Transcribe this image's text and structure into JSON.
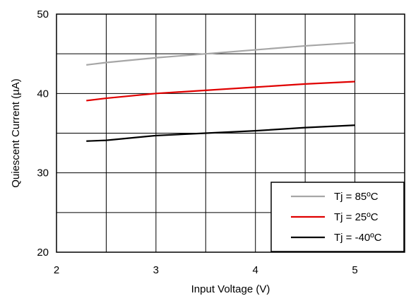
{
  "chart_data": {
    "type": "line",
    "title": "",
    "xlabel": "Input Voltage (V)",
    "ylabel": "Quiescent Current (µA)",
    "xlim": [
      2,
      5.5
    ],
    "ylim": [
      20,
      50
    ],
    "x_ticks": [
      2,
      2.5,
      3,
      3.5,
      4,
      4.5,
      5,
      5.5
    ],
    "x_tick_labels": [
      "2",
      "",
      "3",
      "",
      "4",
      "",
      "5",
      ""
    ],
    "y_ticks": [
      20,
      25,
      30,
      35,
      40,
      45,
      50
    ],
    "y_tick_labels": [
      "20",
      "",
      "30",
      "",
      "40",
      "",
      "50"
    ],
    "grid": true,
    "legend_position": "bottom-right",
    "series": [
      {
        "name": "Tj = 85ºC",
        "color": "#a6a6a6",
        "x": [
          2.3,
          2.5,
          3.0,
          3.5,
          4.0,
          4.5,
          5.0
        ],
        "values": [
          43.6,
          43.9,
          44.5,
          45.0,
          45.5,
          46.0,
          46.4
        ]
      },
      {
        "name": "Tj = 25ºC",
        "color": "#e00000",
        "x": [
          2.3,
          2.5,
          3.0,
          3.5,
          4.0,
          4.5,
          5.0
        ],
        "values": [
          39.1,
          39.4,
          40.0,
          40.4,
          40.8,
          41.2,
          41.5
        ]
      },
      {
        "name": "Tj = -40ºC",
        "color": "#000000",
        "x": [
          2.3,
          2.5,
          3.0,
          3.5,
          4.0,
          4.5,
          5.0
        ],
        "values": [
          34.0,
          34.1,
          34.7,
          35.0,
          35.3,
          35.7,
          36.0
        ]
      }
    ]
  }
}
